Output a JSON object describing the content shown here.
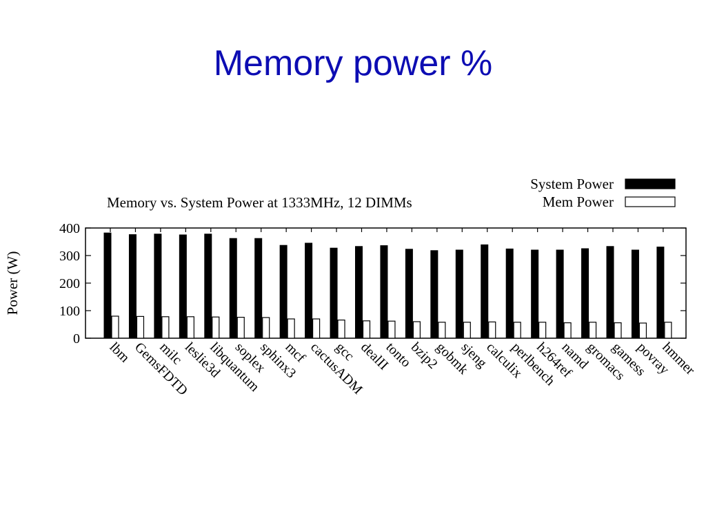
{
  "slide": {
    "title": "Memory power %"
  },
  "chart_data": {
    "type": "bar",
    "title": "Memory vs. System Power at 1333MHz, 12 DIMMs",
    "xlabel": "",
    "ylabel": "Power (W)",
    "ylim": [
      0,
      400
    ],
    "yticks": [
      0,
      100,
      200,
      300,
      400
    ],
    "legend_position": "top-right",
    "categories": [
      "lbm",
      "GemsFDTD",
      "milc",
      "leslie3d",
      "libquantum",
      "soplex",
      "sphinx3",
      "mcf",
      "cactusADM",
      "gcc",
      "dealII",
      "tonto",
      "bzip2",
      "gobmk",
      "sjeng",
      "calculix",
      "perlbench",
      "h264ref",
      "namd",
      "gromacs",
      "gamess",
      "povray",
      "hmmer"
    ],
    "series": [
      {
        "name": "System Power",
        "color": "#000000",
        "values": [
          382,
          376,
          378,
          375,
          378,
          362,
          362,
          337,
          345,
          327,
          333,
          336,
          323,
          318,
          320,
          339,
          324,
          320,
          320,
          325,
          333,
          320,
          331
        ]
      },
      {
        "name": "Mem Power",
        "color": "#ffffff",
        "values": [
          80,
          79,
          78,
          78,
          77,
          76,
          75,
          70,
          70,
          66,
          63,
          62,
          60,
          58,
          58,
          59,
          58,
          58,
          56,
          58,
          56,
          55,
          58
        ]
      }
    ]
  }
}
